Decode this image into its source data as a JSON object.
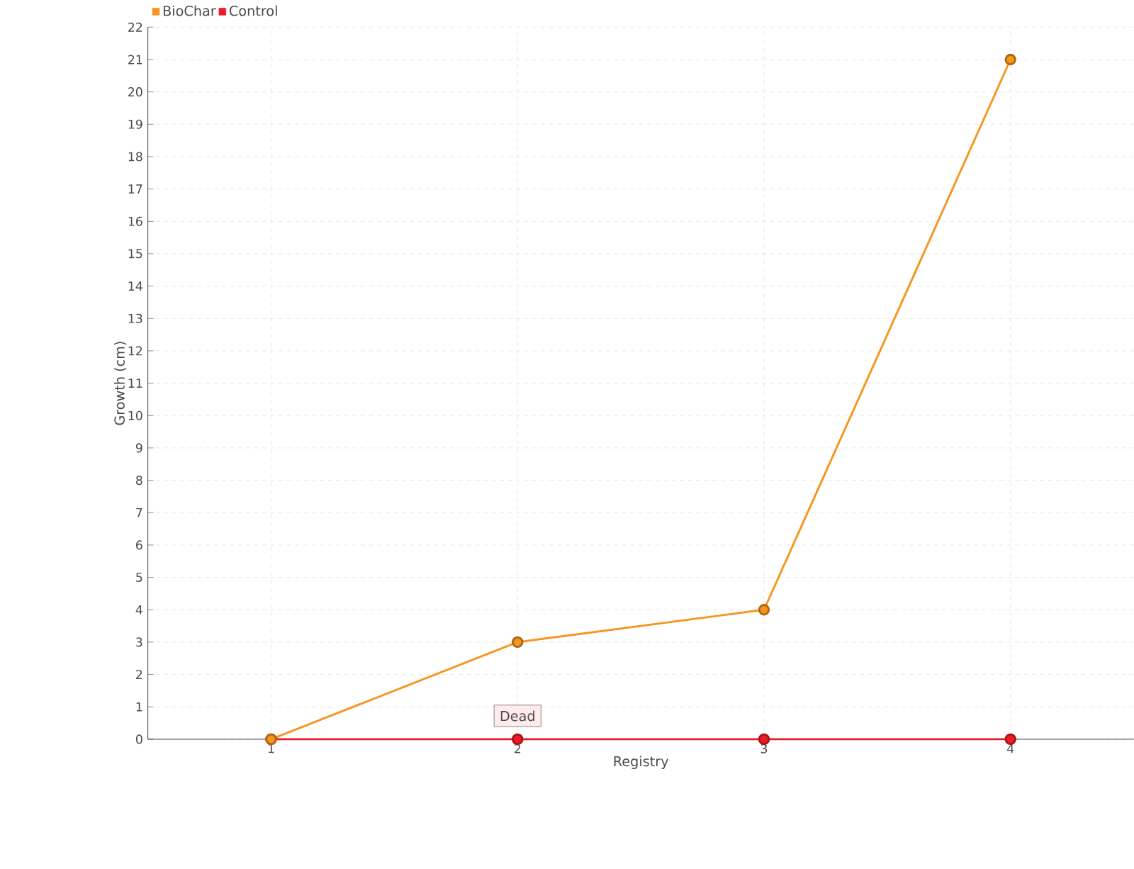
{
  "chart_data": {
    "type": "line",
    "xlabel": "Registry",
    "ylabel": "Growth (cm)",
    "categories": [
      "1",
      "2",
      "3",
      "4"
    ],
    "series": [
      {
        "name": "BioChar",
        "color": "#f7941d",
        "values": [
          0,
          3,
          4,
          21
        ]
      },
      {
        "name": "Control",
        "color": "#ed1c24",
        "values": [
          0,
          0,
          0,
          0
        ]
      }
    ],
    "ylim": [
      0,
      22
    ],
    "yticks": [
      0,
      1,
      2,
      3,
      4,
      5,
      6,
      7,
      8,
      9,
      10,
      11,
      12,
      13,
      14,
      15,
      16,
      17,
      18,
      19,
      20,
      21,
      22
    ],
    "grid": true,
    "legend": "top left",
    "marker": "circle",
    "line_style": "solid",
    "annotations": [
      {
        "text": "Dead",
        "x": "2",
        "y": 0
      }
    ]
  }
}
